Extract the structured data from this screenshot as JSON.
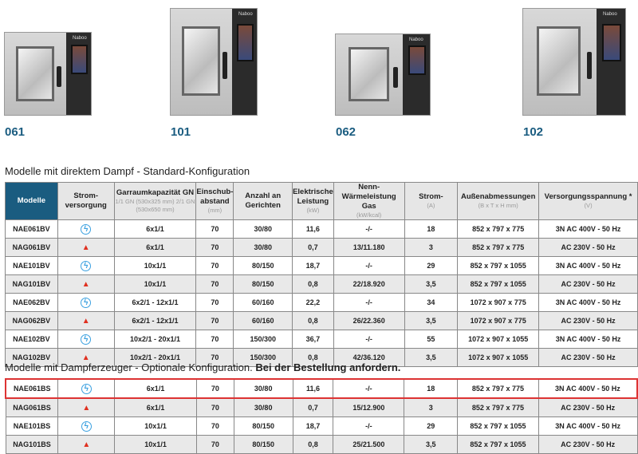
{
  "products": [
    {
      "label": "061"
    },
    {
      "label": "101"
    },
    {
      "label": "062"
    },
    {
      "label": "102"
    }
  ],
  "brand": "Naboo",
  "section1": {
    "title": "Modelle mit direktem Dampf - Standard-Konfiguration"
  },
  "section2": {
    "title": "Modelle mit Dampferzeuger - Optionale Konfiguration.",
    "title_bold": "Bei der Bestellung anfordern."
  },
  "headers": [
    {
      "t": "Modelle",
      "s": ""
    },
    {
      "t": "Strom-versorgung",
      "s": ""
    },
    {
      "t": "Garraumkapazität GN",
      "s": "1/1 GN (530x325 mm) 2/1 GN (530x650 mm)"
    },
    {
      "t": "Einschub-abstand",
      "s": "(mm)"
    },
    {
      "t": "Anzahl an Gerichten",
      "s": ""
    },
    {
      "t": "Elektrische Leistung",
      "s": "(kW)"
    },
    {
      "t": "Nenn-Wärmeleistung Gas",
      "s": "(kW/kcal)"
    },
    {
      "t": "Strom-",
      "s": "(A)"
    },
    {
      "t": "Außenabmessungen",
      "s": "(B x T x H mm)"
    },
    {
      "t": "Versorgungsspannung *",
      "s": "(V)"
    }
  ],
  "colors": {
    "accent": "#1a5c80",
    "electric": "#3aa0e0",
    "gas": "#e03020",
    "highlight": "#d33333"
  },
  "table1": [
    [
      "NAE061BV",
      "electric",
      "6x1/1",
      "70",
      "30/80",
      "11,6",
      "-/-",
      "18",
      "852 x 797 x 775",
      "3N AC 400V - 50 Hz"
    ],
    [
      "NAG061BV",
      "gas",
      "6x1/1",
      "70",
      "30/80",
      "0,7",
      "13/11.180",
      "3",
      "852 x 797 x 775",
      "AC 230V - 50 Hz"
    ],
    [
      "NAE101BV",
      "electric",
      "10x1/1",
      "70",
      "80/150",
      "18,7",
      "-/-",
      "29",
      "852 x 797 x 1055",
      "3N AC 400V - 50 Hz"
    ],
    [
      "NAG101BV",
      "gas",
      "10x1/1",
      "70",
      "80/150",
      "0,8",
      "22/18.920",
      "3,5",
      "852 x 797 x 1055",
      "AC 230V - 50 Hz"
    ],
    [
      "NAE062BV",
      "electric",
      "6x2/1 - 12x1/1",
      "70",
      "60/160",
      "22,2",
      "-/-",
      "34",
      "1072 x 907 x 775",
      "3N AC 400V - 50 Hz"
    ],
    [
      "NAG062BV",
      "gas",
      "6x2/1 - 12x1/1",
      "70",
      "60/160",
      "0,8",
      "26/22.360",
      "3,5",
      "1072 x 907 x 775",
      "AC 230V - 50 Hz"
    ],
    [
      "NAE102BV",
      "electric",
      "10x2/1 - 20x1/1",
      "70",
      "150/300",
      "36,7",
      "-/-",
      "55",
      "1072 x 907 x 1055",
      "3N AC 400V - 50 Hz"
    ],
    [
      "NAG102BV",
      "gas",
      "10x2/1 - 20x1/1",
      "70",
      "150/300",
      "0,8",
      "42/36.120",
      "3,5",
      "1072 x 907 x 1055",
      "AC 230V - 50 Hz"
    ]
  ],
  "table2": [
    [
      "NAE061BS",
      "electric",
      "6x1/1",
      "70",
      "30/80",
      "11,6",
      "-/-",
      "18",
      "852 x 797 x 775",
      "3N AC 400V - 50 Hz"
    ],
    [
      "NAG061BS",
      "gas",
      "6x1/1",
      "70",
      "30/80",
      "0,7",
      "15/12.900",
      "3",
      "852 x 797 x 775",
      "AC 230V - 50 Hz"
    ],
    [
      "NAE101BS",
      "electric",
      "10x1/1",
      "70",
      "80/150",
      "18,7",
      "-/-",
      "29",
      "852 x 797 x 1055",
      "3N AC 400V - 50 Hz"
    ],
    [
      "NAG101BS",
      "gas",
      "10x1/1",
      "70",
      "80/150",
      "0,8",
      "25/21.500",
      "3,5",
      "852 x 797 x 1055",
      "AC 230V - 50 Hz"
    ]
  ],
  "highlighted_row": "NAE061BS"
}
